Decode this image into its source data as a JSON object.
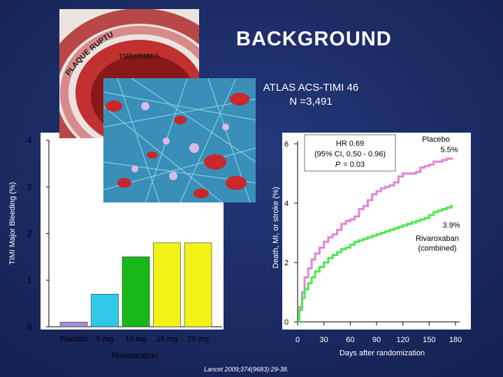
{
  "slide": {
    "title": "BACKGROUND",
    "trial_name": "ATLAS ACS-TIMI 46",
    "trial_n": "N =3,491",
    "image_labels": {
      "thrombus": "THROMBUS",
      "plaque_rupture": "PLAQUE RUPTURE"
    },
    "citation": "Lancet 2009;374(9683):29-38."
  },
  "chart_data": [
    {
      "type": "bar",
      "categories": [
        "Placebo",
        "5 mg",
        "10 mg",
        "15 mg",
        "20 mg"
      ],
      "values": [
        0.1,
        0.7,
        1.5,
        1.8,
        1.8
      ],
      "value_labels": [
        "0.1",
        "0.7",
        "1.5",
        "1.8",
        "1.8"
      ],
      "colors": [
        "#a78bd6",
        "#31c7e8",
        "#18b818",
        "#f2f216",
        "#f2f216"
      ],
      "ylabel": "TIMI Major Bleeding (%)",
      "xlabel": "Rivaroxaban",
      "ylim": [
        0,
        4
      ],
      "yticks": [
        0,
        1,
        2,
        3,
        4
      ]
    },
    {
      "type": "line",
      "xlabel": "Days after randomization",
      "ylabel": "Death, MI, or stroke (%)",
      "xlim": [
        0,
        180
      ],
      "ylim": [
        0,
        6
      ],
      "xticks": [
        0,
        30,
        60,
        90,
        120,
        150,
        180
      ],
      "yticks": [
        0,
        2,
        4,
        6
      ],
      "annotation": {
        "line1": "HR 0.69",
        "line2": "(95% CI, 0.50 - 0.96)",
        "p_label": "P",
        "p_value": "= 0.03"
      },
      "series": [
        {
          "name": "Placebo",
          "end_label": "5.5%",
          "color": "#e585d4",
          "x": [
            0,
            2,
            5,
            8,
            12,
            16,
            20,
            25,
            30,
            35,
            40,
            45,
            50,
            55,
            60,
            65,
            70,
            75,
            80,
            85,
            90,
            95,
            100,
            105,
            110,
            115,
            120,
            125,
            130,
            135,
            140,
            145,
            150,
            155,
            160,
            165,
            170,
            175
          ],
          "y": [
            0,
            0.5,
            1.0,
            1.5,
            1.8,
            2.1,
            2.3,
            2.5,
            2.7,
            2.85,
            2.95,
            3.1,
            3.3,
            3.4,
            3.45,
            3.55,
            3.8,
            3.9,
            4.1,
            4.3,
            4.4,
            4.5,
            4.55,
            4.6,
            4.7,
            4.9,
            5.0,
            5.0,
            5.0,
            5.05,
            5.2,
            5.25,
            5.3,
            5.4,
            5.4,
            5.45,
            5.5,
            5.5
          ]
        },
        {
          "name": "Rivaroxaban (combined)",
          "end_label": "3.9%",
          "color": "#4ee84e",
          "x": [
            0,
            2,
            5,
            8,
            12,
            16,
            20,
            25,
            30,
            35,
            40,
            45,
            50,
            55,
            60,
            65,
            70,
            75,
            80,
            85,
            90,
            95,
            100,
            105,
            110,
            115,
            120,
            125,
            130,
            135,
            140,
            145,
            150,
            155,
            160,
            165,
            170,
            175
          ],
          "y": [
            0,
            0.4,
            0.8,
            1.1,
            1.3,
            1.5,
            1.7,
            1.85,
            2.0,
            2.15,
            2.25,
            2.35,
            2.45,
            2.5,
            2.6,
            2.7,
            2.75,
            2.8,
            2.85,
            2.9,
            2.95,
            3.0,
            3.05,
            3.1,
            3.15,
            3.2,
            3.25,
            3.3,
            3.35,
            3.4,
            3.45,
            3.5,
            3.6,
            3.7,
            3.75,
            3.8,
            3.85,
            3.9
          ]
        }
      ],
      "series_label_lines": {
        "placebo": [
          "Placebo",
          "5.5%"
        ],
        "rivaroxaban": [
          "3.9%",
          "Rivaroxaban",
          "(combined)"
        ]
      }
    }
  ]
}
